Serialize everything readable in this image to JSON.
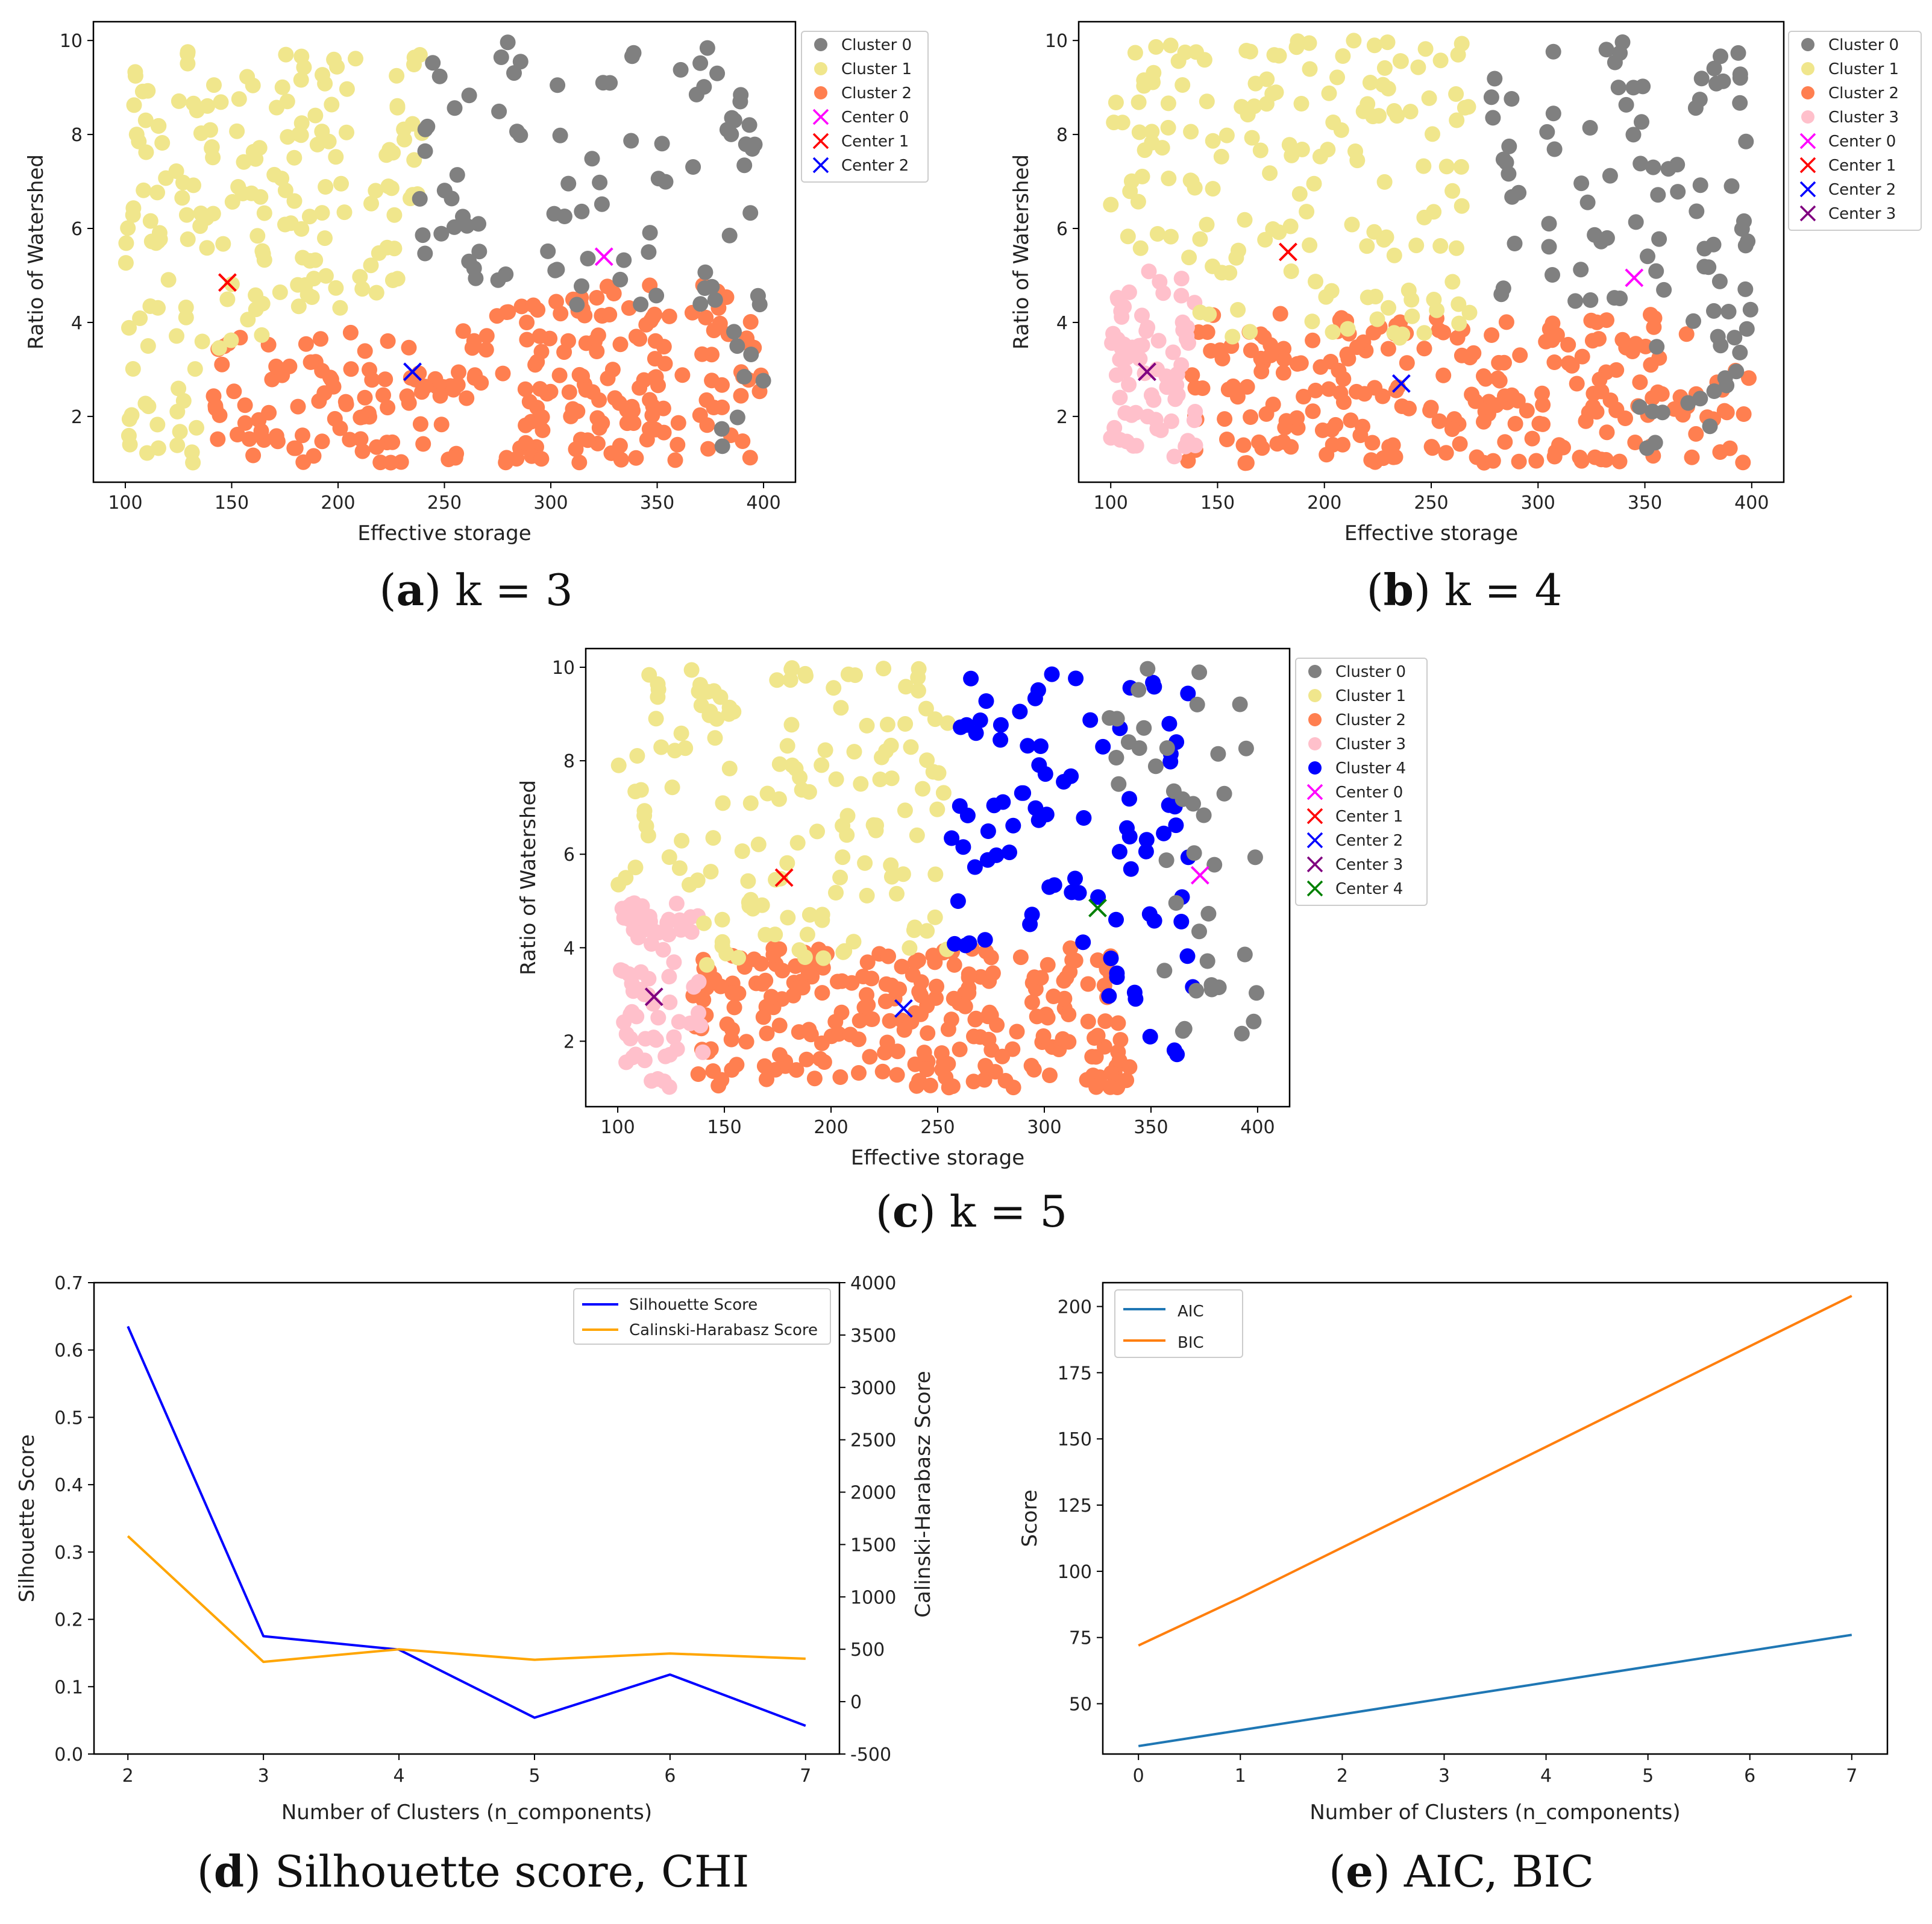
{
  "colors": {
    "cluster0": "#808080",
    "cluster1": "#f0e68c",
    "cluster2": "#ff7f50",
    "cluster3": "#ffc0cb",
    "cluster4": "#0000ff",
    "center0": "#ff00ff",
    "center1": "#ff0000",
    "center2": "#0000ff",
    "center3": "#800080",
    "center4": "#008000",
    "silhouette": "#0000ff",
    "chi": "#ffa500",
    "aic": "#1f77b4",
    "bic": "#ff7f0e"
  },
  "chart_data": [
    {
      "id": "a",
      "type": "scatter",
      "caption": {
        "letter": "a",
        "text": ") k = 3"
      },
      "xlabel": "Effective storage",
      "ylabel": "Ratio of Watershed",
      "xlim": [
        85,
        415
      ],
      "ylim": [
        0.6,
        10.4
      ],
      "xticks": [
        100,
        150,
        200,
        250,
        300,
        350,
        400
      ],
      "yticks": [
        2,
        4,
        6,
        8,
        10
      ],
      "legend": {
        "placement": "outside-top-right",
        "entries": [
          "Cluster 0",
          "Cluster 1",
          "Cluster 2",
          "Center 0",
          "Center 1",
          "Center 2"
        ]
      },
      "clusters": [
        {
          "name": "Cluster 0",
          "color": "cluster0"
        },
        {
          "name": "Cluster 1",
          "color": "cluster1"
        },
        {
          "name": "Cluster 2",
          "color": "cluster2"
        }
      ],
      "centers": [
        {
          "name": "Center 0",
          "color": "center0",
          "x": 325,
          "y": 5.4
        },
        {
          "name": "Center 1",
          "color": "center1",
          "x": 148,
          "y": 4.85
        },
        {
          "name": "Center 2",
          "color": "center2",
          "x": 235,
          "y": 2.95
        }
      ]
    },
    {
      "id": "b",
      "type": "scatter",
      "caption": {
        "letter": "b",
        "text": ") k = 4"
      },
      "xlabel": "Effective storage",
      "ylabel": "Ratio of Watershed",
      "xlim": [
        85,
        415
      ],
      "ylim": [
        0.6,
        10.4
      ],
      "xticks": [
        100,
        150,
        200,
        250,
        300,
        350,
        400
      ],
      "yticks": [
        2,
        4,
        6,
        8,
        10
      ],
      "legend": {
        "placement": "outside-top-right",
        "entries": [
          "Cluster 0",
          "Cluster 1",
          "Cluster 2",
          "Cluster 3",
          "Center 0",
          "Center 1",
          "Center 2",
          "Center 3"
        ]
      },
      "clusters": [
        {
          "name": "Cluster 0",
          "color": "cluster0"
        },
        {
          "name": "Cluster 1",
          "color": "cluster1"
        },
        {
          "name": "Cluster 2",
          "color": "cluster2"
        },
        {
          "name": "Cluster 3",
          "color": "cluster3"
        }
      ],
      "centers": [
        {
          "name": "Center 0",
          "color": "center0",
          "x": 345,
          "y": 4.95
        },
        {
          "name": "Center 1",
          "color": "center1",
          "x": 183,
          "y": 5.5
        },
        {
          "name": "Center 2",
          "color": "center2",
          "x": 236,
          "y": 2.7
        },
        {
          "name": "Center 3",
          "color": "center3",
          "x": 117,
          "y": 2.95
        }
      ]
    },
    {
      "id": "c",
      "type": "scatter",
      "caption": {
        "letter": "c",
        "text": ") k = 5"
      },
      "xlabel": "Effective storage",
      "ylabel": "Ratio of Watershed",
      "xlim": [
        85,
        415
      ],
      "ylim": [
        0.6,
        10.4
      ],
      "xticks": [
        100,
        150,
        200,
        250,
        300,
        350,
        400
      ],
      "yticks": [
        2,
        4,
        6,
        8,
        10
      ],
      "legend": {
        "placement": "outside-top-right",
        "entries": [
          "Cluster 0",
          "Cluster 1",
          "Cluster 2",
          "Cluster 3",
          "Cluster 4",
          "Center 0",
          "Center 1",
          "Center 2",
          "Center 3",
          "Center 4"
        ]
      },
      "clusters": [
        {
          "name": "Cluster 0",
          "color": "cluster0"
        },
        {
          "name": "Cluster 1",
          "color": "cluster1"
        },
        {
          "name": "Cluster 2",
          "color": "cluster2"
        },
        {
          "name": "Cluster 3",
          "color": "cluster3"
        },
        {
          "name": "Cluster 4",
          "color": "cluster4"
        }
      ],
      "centers": [
        {
          "name": "Center 0",
          "color": "center0",
          "x": 373,
          "y": 5.55
        },
        {
          "name": "Center 1",
          "color": "center1",
          "x": 178,
          "y": 5.5
        },
        {
          "name": "Center 2",
          "color": "center2",
          "x": 234,
          "y": 2.7
        },
        {
          "name": "Center 3",
          "color": "center3",
          "x": 117,
          "y": 2.95
        },
        {
          "name": "Center 4",
          "color": "center4",
          "x": 325,
          "y": 4.85
        }
      ]
    },
    {
      "id": "d",
      "type": "line",
      "caption": {
        "letter": "d",
        "text": ") Silhouette score, CHI"
      },
      "xlabel": "Number of Clusters (n_components)",
      "ylabel": "Silhouette Score",
      "y2label": "Calinski-Harabasz Score",
      "xlim": [
        1.75,
        7.25
      ],
      "ylim": [
        0,
        0.7
      ],
      "y2lim": [
        -500,
        4000
      ],
      "xticks": [
        2,
        3,
        4,
        5,
        6,
        7
      ],
      "yticks": [
        "0.0",
        "0.1",
        "0.2",
        "0.3",
        "0.4",
        "0.5",
        "0.6",
        "0.7"
      ],
      "y2ticks": [
        -500,
        0,
        500,
        1000,
        1500,
        2000,
        2500,
        3000,
        3500,
        4000
      ],
      "legend": {
        "placement": "top-right",
        "entries": [
          "Silhouette Score",
          "Calinski-Harabasz Score"
        ]
      },
      "x": [
        2,
        3,
        4,
        5,
        6,
        7
      ],
      "series": [
        {
          "name": "Silhouette Score",
          "axis": "left",
          "color": "silhouette",
          "values": [
            0.635,
            0.175,
            0.155,
            0.054,
            0.118,
            0.042
          ]
        },
        {
          "name": "Calinski-Harabasz Score",
          "axis": "right",
          "color": "chi",
          "values": [
            1580,
            380,
            500,
            400,
            460,
            410
          ]
        }
      ]
    },
    {
      "id": "e",
      "type": "line",
      "caption": {
        "letter": "e",
        "text": ") AIC, BIC"
      },
      "xlabel": "Number of Clusters (n_components)",
      "ylabel": "Score",
      "xlim": [
        -0.35,
        7.35
      ],
      "ylim": [
        31,
        209
      ],
      "xticks": [
        0,
        1,
        2,
        3,
        4,
        5,
        6,
        7
      ],
      "yticks": [
        50,
        75,
        100,
        125,
        150,
        175,
        200
      ],
      "legend": {
        "placement": "top-left",
        "entries": [
          "AIC",
          "BIC"
        ]
      },
      "x": [
        0,
        1,
        2,
        3,
        4,
        5,
        6,
        7
      ],
      "series": [
        {
          "name": "AIC",
          "color": "aic",
          "values": [
            34,
            40,
            46,
            52,
            58,
            64,
            70,
            76
          ]
        },
        {
          "name": "BIC",
          "color": "bic",
          "values": [
            72,
            90,
            109,
            128,
            147,
            166,
            185,
            204
          ]
        }
      ]
    }
  ]
}
